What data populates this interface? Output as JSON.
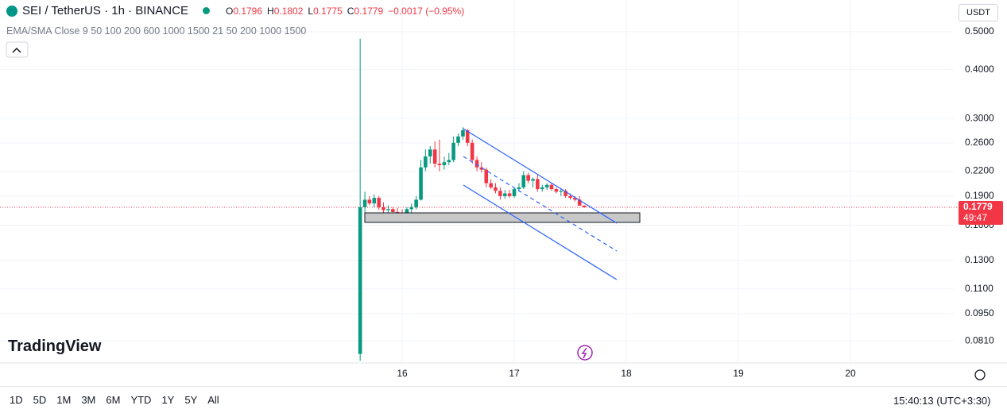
{
  "ui": {
    "symbol": "SEI / TetherUS · 1h · BINANCE",
    "quote": [
      {
        "k": "O",
        "v": "0.1796"
      },
      {
        "k": "H",
        "v": "0.1802"
      },
      {
        "k": "L",
        "v": "0.1775"
      },
      {
        "k": "C",
        "v": "0.1779"
      }
    ],
    "change": "−0.0017 (−0.95%)",
    "indicators": "EMA/SMA Close 9 50 100 200 600 1000 1500 21 50 200 1000 1500",
    "currency": "USDT",
    "logo": "TradingView",
    "ranges": [
      "1D",
      "5D",
      "1M",
      "3M",
      "6M",
      "YTD",
      "1Y",
      "5Y",
      "All"
    ],
    "clock": "15:40:13 (UTC+3:30)",
    "countdown": "49:47"
  },
  "chart_data": {
    "type": "candlestick",
    "log_scale": true,
    "grid": true,
    "up_color": "#089981",
    "down_color": "#f23645",
    "last_price": 0.1779,
    "xlim": [
      12.411,
      20.922
    ],
    "xticks": [
      16,
      17,
      18,
      19,
      20
    ],
    "ylim": [
      0.0711,
      0.603
    ],
    "yticks": [
      {
        "value": 0.5,
        "label": "0.5000"
      },
      {
        "value": 0.4,
        "label": "0.4000"
      },
      {
        "value": 0.3,
        "label": "0.3000"
      },
      {
        "value": 0.26,
        "label": "0.2600"
      },
      {
        "value": 0.22,
        "label": "0.2200"
      },
      {
        "value": 0.19,
        "label": "0.1900"
      },
      {
        "value": 0.16,
        "label": "0.1600"
      },
      {
        "value": 0.13,
        "label": "0.1300"
      },
      {
        "value": 0.11,
        "label": "0.1100"
      },
      {
        "value": 0.095,
        "label": "0.0950"
      },
      {
        "value": 0.081,
        "label": "0.0810"
      }
    ],
    "x": [
      15.625,
      15.667,
      15.708,
      15.75,
      15.792,
      15.833,
      15.875,
      15.917,
      15.958,
      16,
      16.042,
      16.083,
      16.125,
      16.167,
      16.208,
      16.25,
      16.292,
      16.333,
      16.375,
      16.417,
      16.458,
      16.5,
      16.542,
      16.583,
      16.625,
      16.667,
      16.708,
      16.75,
      16.792,
      16.833,
      16.875,
      16.917,
      16.958,
      17,
      17.042,
      17.083,
      17.125,
      17.167,
      17.208,
      17.25,
      17.292,
      17.333,
      17.375,
      17.417,
      17.458,
      17.5,
      17.542,
      17.583,
      17.625
    ],
    "open": [
      0.075,
      0.178,
      0.186,
      0.182,
      0.188,
      0.178,
      0.175,
      0.176,
      0.173,
      0.172,
      0.171,
      0.176,
      0.178,
      0.186,
      0.225,
      0.24,
      0.25,
      0.23,
      0.228,
      0.232,
      0.235,
      0.26,
      0.27,
      0.28,
      0.26,
      0.235,
      0.225,
      0.222,
      0.205,
      0.2,
      0.196,
      0.19,
      0.193,
      0.19,
      0.198,
      0.2,
      0.215,
      0.208,
      0.21,
      0.198,
      0.2,
      0.203,
      0.198,
      0.195,
      0.196,
      0.19,
      0.188,
      0.186,
      0.1796
    ],
    "high": [
      0.48,
      0.195,
      0.19,
      0.192,
      0.19,
      0.183,
      0.18,
      0.178,
      0.177,
      0.176,
      0.178,
      0.182,
      0.19,
      0.235,
      0.25,
      0.255,
      0.262,
      0.265,
      0.24,
      0.245,
      0.27,
      0.275,
      0.285,
      0.282,
      0.265,
      0.24,
      0.232,
      0.225,
      0.21,
      0.205,
      0.2,
      0.197,
      0.197,
      0.2,
      0.205,
      0.22,
      0.218,
      0.212,
      0.215,
      0.203,
      0.205,
      0.205,
      0.2,
      0.198,
      0.198,
      0.193,
      0.19,
      0.19,
      0.1802
    ],
    "low": [
      0.072,
      0.172,
      0.18,
      0.178,
      0.175,
      0.172,
      0.171,
      0.17,
      0.17,
      0.169,
      0.17,
      0.172,
      0.176,
      0.185,
      0.22,
      0.23,
      0.225,
      0.22,
      0.222,
      0.228,
      0.232,
      0.255,
      0.265,
      0.255,
      0.23,
      0.22,
      0.218,
      0.2,
      0.198,
      0.193,
      0.186,
      0.187,
      0.188,
      0.188,
      0.195,
      0.198,
      0.205,
      0.2,
      0.195,
      0.195,
      0.197,
      0.196,
      0.193,
      0.19,
      0.188,
      0.186,
      0.184,
      0.18,
      0.1775
    ],
    "close": [
      0.178,
      0.186,
      0.182,
      0.188,
      0.178,
      0.175,
      0.176,
      0.173,
      0.172,
      0.171,
      0.176,
      0.178,
      0.186,
      0.225,
      0.24,
      0.25,
      0.23,
      0.228,
      0.232,
      0.235,
      0.26,
      0.27,
      0.28,
      0.26,
      0.235,
      0.225,
      0.222,
      0.205,
      0.2,
      0.196,
      0.19,
      0.193,
      0.19,
      0.198,
      0.2,
      0.215,
      0.208,
      0.21,
      0.198,
      0.2,
      0.203,
      0.198,
      0.195,
      0.196,
      0.19,
      0.188,
      0.186,
      0.1796,
      0.1779
    ]
  }
}
